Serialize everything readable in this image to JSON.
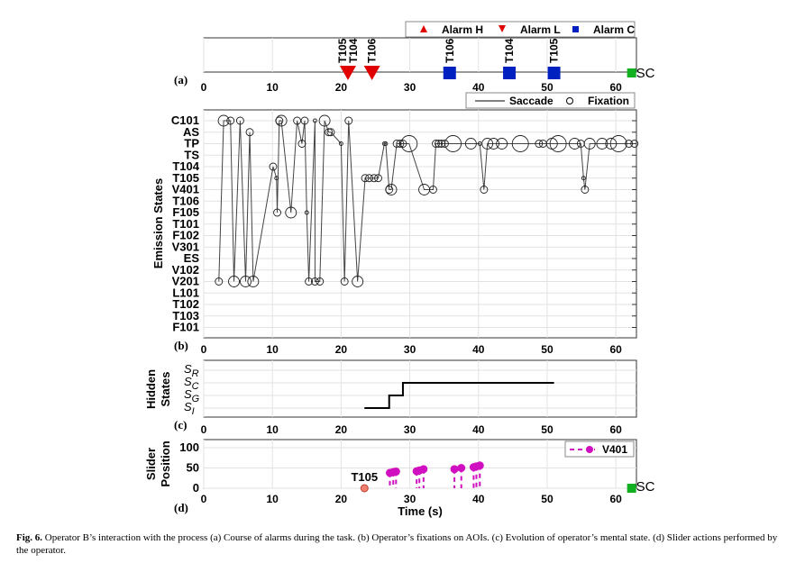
{
  "chart_data": [
    {
      "type": "scatter",
      "panel_label": "(a)",
      "title": "Course of alarms",
      "xlim": [
        0,
        63
      ],
      "xticks": [
        0,
        10,
        20,
        30,
        40,
        50,
        60
      ],
      "legend": {
        "placement": "top-right",
        "entries": [
          "Alarm H",
          "Alarm L",
          "Alarm C"
        ]
      },
      "colors": {
        "Alarm H": "#e00000",
        "Alarm L": "#e00000",
        "Alarm C": "#0020c0",
        "SC": "#10b020"
      },
      "alarms": [
        {
          "type": "Alarm L",
          "t": 21.0,
          "labels": [
            "T105",
            "T104"
          ]
        },
        {
          "type": "Alarm L",
          "t": 24.5,
          "labels": [
            "T106"
          ]
        },
        {
          "type": "Alarm C",
          "t": 35.8,
          "labels": [
            "T106"
          ]
        },
        {
          "type": "Alarm C",
          "t": 44.5,
          "labels": [
            "T104"
          ]
        },
        {
          "type": "Alarm C",
          "t": 51.0,
          "labels": [
            "T105"
          ]
        }
      ],
      "end_marker": {
        "t": 62.3,
        "label": "SC"
      }
    },
    {
      "type": "scatter",
      "panel_label": "(b)",
      "ylabel": "Emission States",
      "xlim": [
        0,
        63
      ],
      "xticks": [
        0,
        10,
        20,
        30,
        40,
        50,
        60
      ],
      "states": [
        "C101",
        "AS",
        "TP",
        "TS",
        "T104",
        "T105",
        "V401",
        "T106",
        "F105",
        "T101",
        "F102",
        "V301",
        "ES",
        "V102",
        "V201",
        "L101",
        "T102",
        "T103",
        "F101"
      ],
      "legend": {
        "placement": "top-right",
        "entries": [
          "Saccade",
          "Fixation"
        ]
      },
      "fixations": [
        [
          2.2,
          "V201",
          2
        ],
        [
          2.9,
          "C101",
          3
        ],
        [
          3.9,
          "C101",
          2
        ],
        [
          4.4,
          "V201",
          3
        ],
        [
          5.3,
          "C101",
          2
        ],
        [
          6.1,
          "V201",
          3
        ],
        [
          6.7,
          "AS",
          2
        ],
        [
          7.2,
          "V201",
          3
        ],
        [
          10.1,
          "T104",
          2
        ],
        [
          10.6,
          "T105",
          1
        ],
        [
          10.7,
          "F105",
          2
        ],
        [
          11.0,
          "C101",
          2
        ],
        [
          11.3,
          "C101",
          3
        ],
        [
          12.7,
          "F105",
          3
        ],
        [
          13.6,
          "C101",
          2
        ],
        [
          14.3,
          "TP",
          2
        ],
        [
          14.7,
          "C101",
          2
        ],
        [
          15.0,
          "F105",
          1
        ],
        [
          15.3,
          "V201",
          2
        ],
        [
          16.2,
          "C101",
          1
        ],
        [
          16.2,
          "V201",
          2
        ],
        [
          16.9,
          "V201",
          2
        ],
        [
          17.6,
          "C101",
          3
        ],
        [
          18.2,
          "AS",
          2
        ],
        [
          18.5,
          "AS",
          2
        ],
        [
          20.0,
          "TP",
          1
        ],
        [
          20.5,
          "V201",
          2
        ],
        [
          21.1,
          "C101",
          2
        ],
        [
          22.4,
          "V201",
          3
        ],
        [
          23.5,
          "T105",
          2
        ],
        [
          24.1,
          "T105",
          2
        ],
        [
          24.8,
          "T105",
          2
        ],
        [
          25.4,
          "T105",
          2
        ],
        [
          26.3,
          "TP",
          1
        ],
        [
          26.5,
          "TP",
          1
        ],
        [
          27.0,
          "V401",
          2
        ],
        [
          27.3,
          "V401",
          3
        ],
        [
          28.1,
          "TP",
          2
        ],
        [
          28.6,
          "TP",
          2
        ],
        [
          29.0,
          "TP",
          2
        ],
        [
          29.9,
          "TP",
          4
        ],
        [
          32.1,
          "V401",
          3
        ],
        [
          33.4,
          "V401",
          2
        ],
        [
          33.8,
          "TP",
          2
        ],
        [
          34.2,
          "TP",
          2
        ],
        [
          34.6,
          "TP",
          2
        ],
        [
          35.1,
          "TP",
          2
        ],
        [
          36.3,
          "TP",
          4
        ],
        [
          38.9,
          "TP",
          3
        ],
        [
          40.2,
          "TP",
          1
        ],
        [
          40.8,
          "V401",
          2
        ],
        [
          41.3,
          "TP",
          3
        ],
        [
          42.2,
          "TP",
          3
        ],
        [
          43.4,
          "TP",
          3
        ],
        [
          46.1,
          "TP",
          4
        ],
        [
          48.8,
          "TP",
          2
        ],
        [
          49.4,
          "TP",
          2
        ],
        [
          50.7,
          "TP",
          3
        ],
        [
          51.6,
          "TP",
          4
        ],
        [
          54.0,
          "TP",
          3
        ],
        [
          54.9,
          "TP",
          2
        ],
        [
          55.3,
          "T105",
          1
        ],
        [
          55.5,
          "V401",
          2
        ],
        [
          56.2,
          "TP",
          3
        ],
        [
          58.0,
          "TP",
          3
        ],
        [
          59.3,
          "TP",
          3
        ],
        [
          60.4,
          "TP",
          4
        ],
        [
          61.9,
          "TP",
          2
        ],
        [
          62.7,
          "TP",
          2
        ]
      ]
    },
    {
      "type": "line",
      "panel_label": "(c)",
      "ylabel": "Hidden States",
      "xlim": [
        0,
        63
      ],
      "xticks": [
        0,
        10,
        20,
        30,
        40,
        50,
        60
      ],
      "states": [
        "S_I",
        "S_G",
        "S_C",
        "S_R"
      ],
      "steps": [
        [
          23.4,
          "S_I"
        ],
        [
          27.0,
          "S_I"
        ],
        [
          27.0,
          "S_G"
        ],
        [
          29.0,
          "S_G"
        ],
        [
          29.0,
          "S_C"
        ],
        [
          51.0,
          "S_C"
        ]
      ]
    },
    {
      "type": "scatter",
      "panel_label": "(d)",
      "xlabel": "Time (s)",
      "ylabel": "Slider Position",
      "xlim": [
        0,
        63
      ],
      "ylim": [
        0,
        120
      ],
      "xticks": [
        0,
        10,
        20,
        30,
        40,
        50,
        60
      ],
      "yticks": [
        0,
        50,
        100
      ],
      "legend": {
        "placement": "top-right",
        "entries": [
          "V401"
        ]
      },
      "series_color": "#d010c0",
      "V401": [
        [
          27.1,
          38
        ],
        [
          27.6,
          40
        ],
        [
          28.0,
          41
        ],
        [
          31.0,
          42
        ],
        [
          31.4,
          44
        ],
        [
          32.0,
          47
        ],
        [
          36.5,
          47
        ],
        [
          37.5,
          50
        ],
        [
          39.3,
          52
        ],
        [
          39.7,
          54
        ],
        [
          40.2,
          56
        ]
      ],
      "alarm_marker": {
        "t": 23.4,
        "value": 0,
        "label": "T105",
        "color": "#f08070"
      },
      "end_marker": {
        "t": 62.3,
        "value": 0,
        "label": "SC"
      }
    }
  ],
  "caption": {
    "fig": "Fig. 6.",
    "text": "Operator B’s interaction with the process (a) Course of alarms during the task. (b) Operator’s fixations on AOIs. (c) Evolution of operator’s mental state. (d) Slider actions performed by the operator."
  }
}
